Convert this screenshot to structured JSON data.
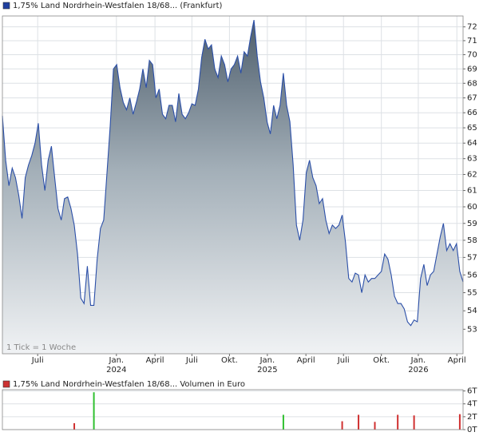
{
  "chart_data": [
    {
      "type": "area",
      "title": "1,75% Land Nordrhein-Westfalen 18/68... (Frankfurt)",
      "title_color": "#1f3f9f",
      "note": "1 Tick = 1 Woche",
      "series": [
        {
          "color": "#2b4fa8",
          "values": [
            65.8,
            62.9,
            61.3,
            62.4,
            61.8,
            60.7,
            59.3,
            61.8,
            62.6,
            63.2,
            64.0,
            65.3,
            62.6,
            61.0,
            62.9,
            63.8,
            61.8,
            59.9,
            59.2,
            60.5,
            60.6,
            59.9,
            58.9,
            57.2,
            54.7,
            54.4,
            56.5,
            54.3,
            54.3,
            56.9,
            58.7,
            59.2,
            62.1,
            65.1,
            69.0,
            69.3,
            67.7,
            66.7,
            66.2,
            67.0,
            65.9,
            66.7,
            67.6,
            69.0,
            67.7,
            69.6,
            69.3,
            67.0,
            67.6,
            65.9,
            65.6,
            66.5,
            66.5,
            65.4,
            67.3,
            65.9,
            65.6,
            66.0,
            66.6,
            66.5,
            67.6,
            69.8,
            71.1,
            70.4,
            70.7,
            69.0,
            68.4,
            69.9,
            69.3,
            68.1,
            69.0,
            69.3,
            69.9,
            68.7,
            70.2,
            69.9,
            71.3,
            72.5,
            69.9,
            68.1,
            67.0,
            65.4,
            64.6,
            66.5,
            65.6,
            66.5,
            68.7,
            66.5,
            65.4,
            62.6,
            58.9,
            58.0,
            59.2,
            62.1,
            62.9,
            61.8,
            61.3,
            60.2,
            60.5,
            59.2,
            58.4,
            58.9,
            58.7,
            58.9,
            59.5,
            57.9,
            55.8,
            55.6,
            56.1,
            56.0,
            55.0,
            56.0,
            55.6,
            55.8,
            55.8,
            56.0,
            56.2,
            57.2,
            56.9,
            56.0,
            54.8,
            54.4,
            54.4,
            54.1,
            53.4,
            53.2,
            53.5,
            53.4,
            55.8,
            56.6,
            55.4,
            56.0,
            56.2,
            57.2,
            58.2,
            59.0,
            57.4,
            57.8,
            57.4,
            57.8,
            56.2,
            55.6
          ]
        }
      ],
      "xlim": [
        0,
        141
      ],
      "xticks": [
        {
          "value": 10.8,
          "label": "Juli"
        },
        {
          "value": 34.9,
          "label": "Jan.",
          "year": "2024"
        },
        {
          "value": 46.7,
          "label": "April"
        },
        {
          "value": 58.0,
          "label": "Juli"
        },
        {
          "value": 69.5,
          "label": "Okt."
        },
        {
          "value": 81.1,
          "label": "Jan.",
          "year": "2025"
        },
        {
          "value": 92.9,
          "label": "April"
        },
        {
          "value": 104.4,
          "label": "Juli"
        },
        {
          "value": 116.0,
          "label": "Okt."
        },
        {
          "value": 127.3,
          "label": "Jan.",
          "year": "2026"
        },
        {
          "value": 139.1,
          "label": "April"
        }
      ],
      "ylim": [
        51.7,
        72.8
      ],
      "ylog": true,
      "yticks": [
        53,
        54,
        55,
        56,
        57,
        58,
        59,
        60,
        61,
        62,
        63,
        64,
        65,
        66,
        67,
        68,
        69,
        70,
        71,
        72
      ],
      "grid": true
    },
    {
      "type": "bar",
      "title": "1,75% Land Nordrhein-Westfalen 18/68... Volumen in Euro",
      "title_color": "#cc3333",
      "xlim": [
        0,
        141
      ],
      "x": [
        22,
        28,
        86,
        104,
        109,
        114,
        121,
        126,
        140
      ],
      "values": [
        1.0,
        5.8,
        2.3,
        1.3,
        2.3,
        1.2,
        2.3,
        2.2,
        2.4
      ],
      "colors": [
        "#d03030",
        "#30c030",
        "#30c030",
        "#d03030",
        "#d03030",
        "#d03030",
        "#d03030",
        "#d03030",
        "#d03030"
      ],
      "ylim": [
        0,
        6.2
      ],
      "yticks": [
        {
          "value": 0,
          "label": "0T"
        },
        {
          "value": 2,
          "label": "2T"
        },
        {
          "value": 4,
          "label": "4T"
        },
        {
          "value": 6,
          "label": "6T"
        }
      ],
      "grid": true
    }
  ]
}
